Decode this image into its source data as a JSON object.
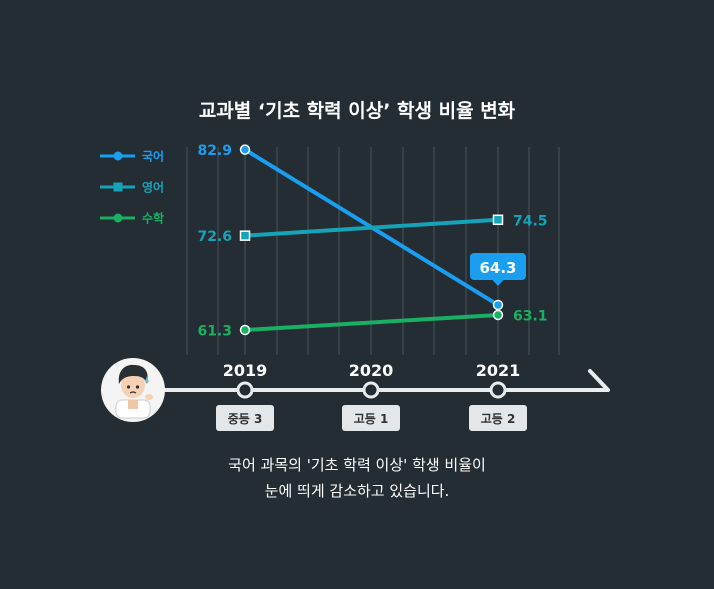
{
  "chart_data": {
    "type": "line",
    "title": "교과별 ‘기초 학력 이상’ 학생 비율 변화",
    "x": [
      "2019",
      "2020",
      "2021"
    ],
    "grade_labels": [
      "중등 3",
      "고등 1",
      "고등 2"
    ],
    "series": [
      {
        "name": "국어",
        "color": "#1a9ff0",
        "marker": "circle",
        "points": [
          {
            "x": "2019",
            "y": 82.9,
            "label": "82.9"
          },
          {
            "x": "2021",
            "y": 64.3,
            "label": "64.3"
          }
        ]
      },
      {
        "name": "영어",
        "color": "#16a3b8",
        "marker": "square",
        "points": [
          {
            "x": "2019",
            "y": 72.6,
            "label": "72.6"
          },
          {
            "x": "2021",
            "y": 74.5,
            "label": "74.5"
          }
        ]
      },
      {
        "name": "수학",
        "color": "#19b063",
        "marker": "circle",
        "points": [
          {
            "x": "2019",
            "y": 61.3,
            "label": "61.3"
          },
          {
            "x": "2021",
            "y": 63.1,
            "label": "63.1"
          }
        ]
      }
    ],
    "highlight": {
      "series": "국어",
      "x": "2021",
      "label": "64.3"
    },
    "legend": "top-left",
    "grid": "vertical"
  },
  "caption": {
    "line1": "국어 과목의 '기초 학력 이상' 학생 비율이",
    "line2": "눈에 띄게 감소하고 있습니다."
  }
}
